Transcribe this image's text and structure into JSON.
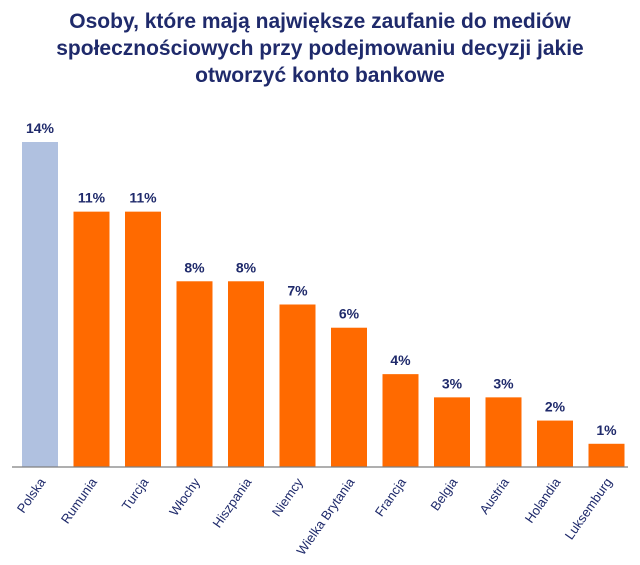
{
  "chart_data": {
    "type": "bar",
    "title": "Osoby, które mają największe zaufanie do mediów społecznościowych przy podejmowaniu decyzji jakie otworzyć konto bankowe",
    "xlabel": "",
    "ylabel": "",
    "ylim": [
      0,
      14
    ],
    "grid": false,
    "legend": "none",
    "categories": [
      "Polska",
      "Rumunia",
      "Turcja",
      "Włochy",
      "Hiszpania",
      "Niemcy",
      "Wielka Brytania",
      "Francja",
      "Belgia",
      "Austria",
      "Holandia",
      "Luksemburg"
    ],
    "values": [
      14,
      11,
      11,
      8,
      8,
      7,
      6,
      4,
      3,
      3,
      2,
      1
    ],
    "value_labels": [
      "14%",
      "11%",
      "11%",
      "8%",
      "8%",
      "7%",
      "6%",
      "4%",
      "3%",
      "3%",
      "2%",
      "1%"
    ],
    "colors": {
      "highlight": "#b0c1e0",
      "default": "#ff6a00",
      "text": "#1f2a6b",
      "axis": "#7f7f7f"
    }
  }
}
